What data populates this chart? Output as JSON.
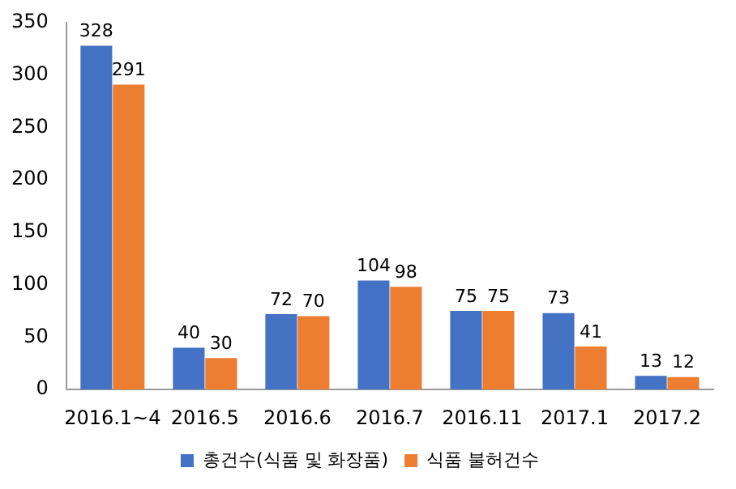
{
  "chart_data": {
    "type": "bar",
    "categories": [
      "2016.1~4",
      "2016.5",
      "2016.6",
      "2016.7",
      "2016.11",
      "2017.1",
      "2017.2"
    ],
    "series": [
      {
        "name": "총건수(식품 및 화장품)",
        "color": "#4472c4",
        "values": [
          328,
          40,
          72,
          104,
          75,
          73,
          13
        ]
      },
      {
        "name": "식품 불허건수",
        "color": "#ed7d31",
        "values": [
          291,
          30,
          70,
          98,
          75,
          41,
          12
        ]
      }
    ],
    "ylim": [
      0,
      350
    ],
    "yticks": [
      0,
      50,
      100,
      150,
      200,
      250,
      300,
      350
    ],
    "grid": false,
    "legend": "bottom",
    "data_labels": true
  }
}
